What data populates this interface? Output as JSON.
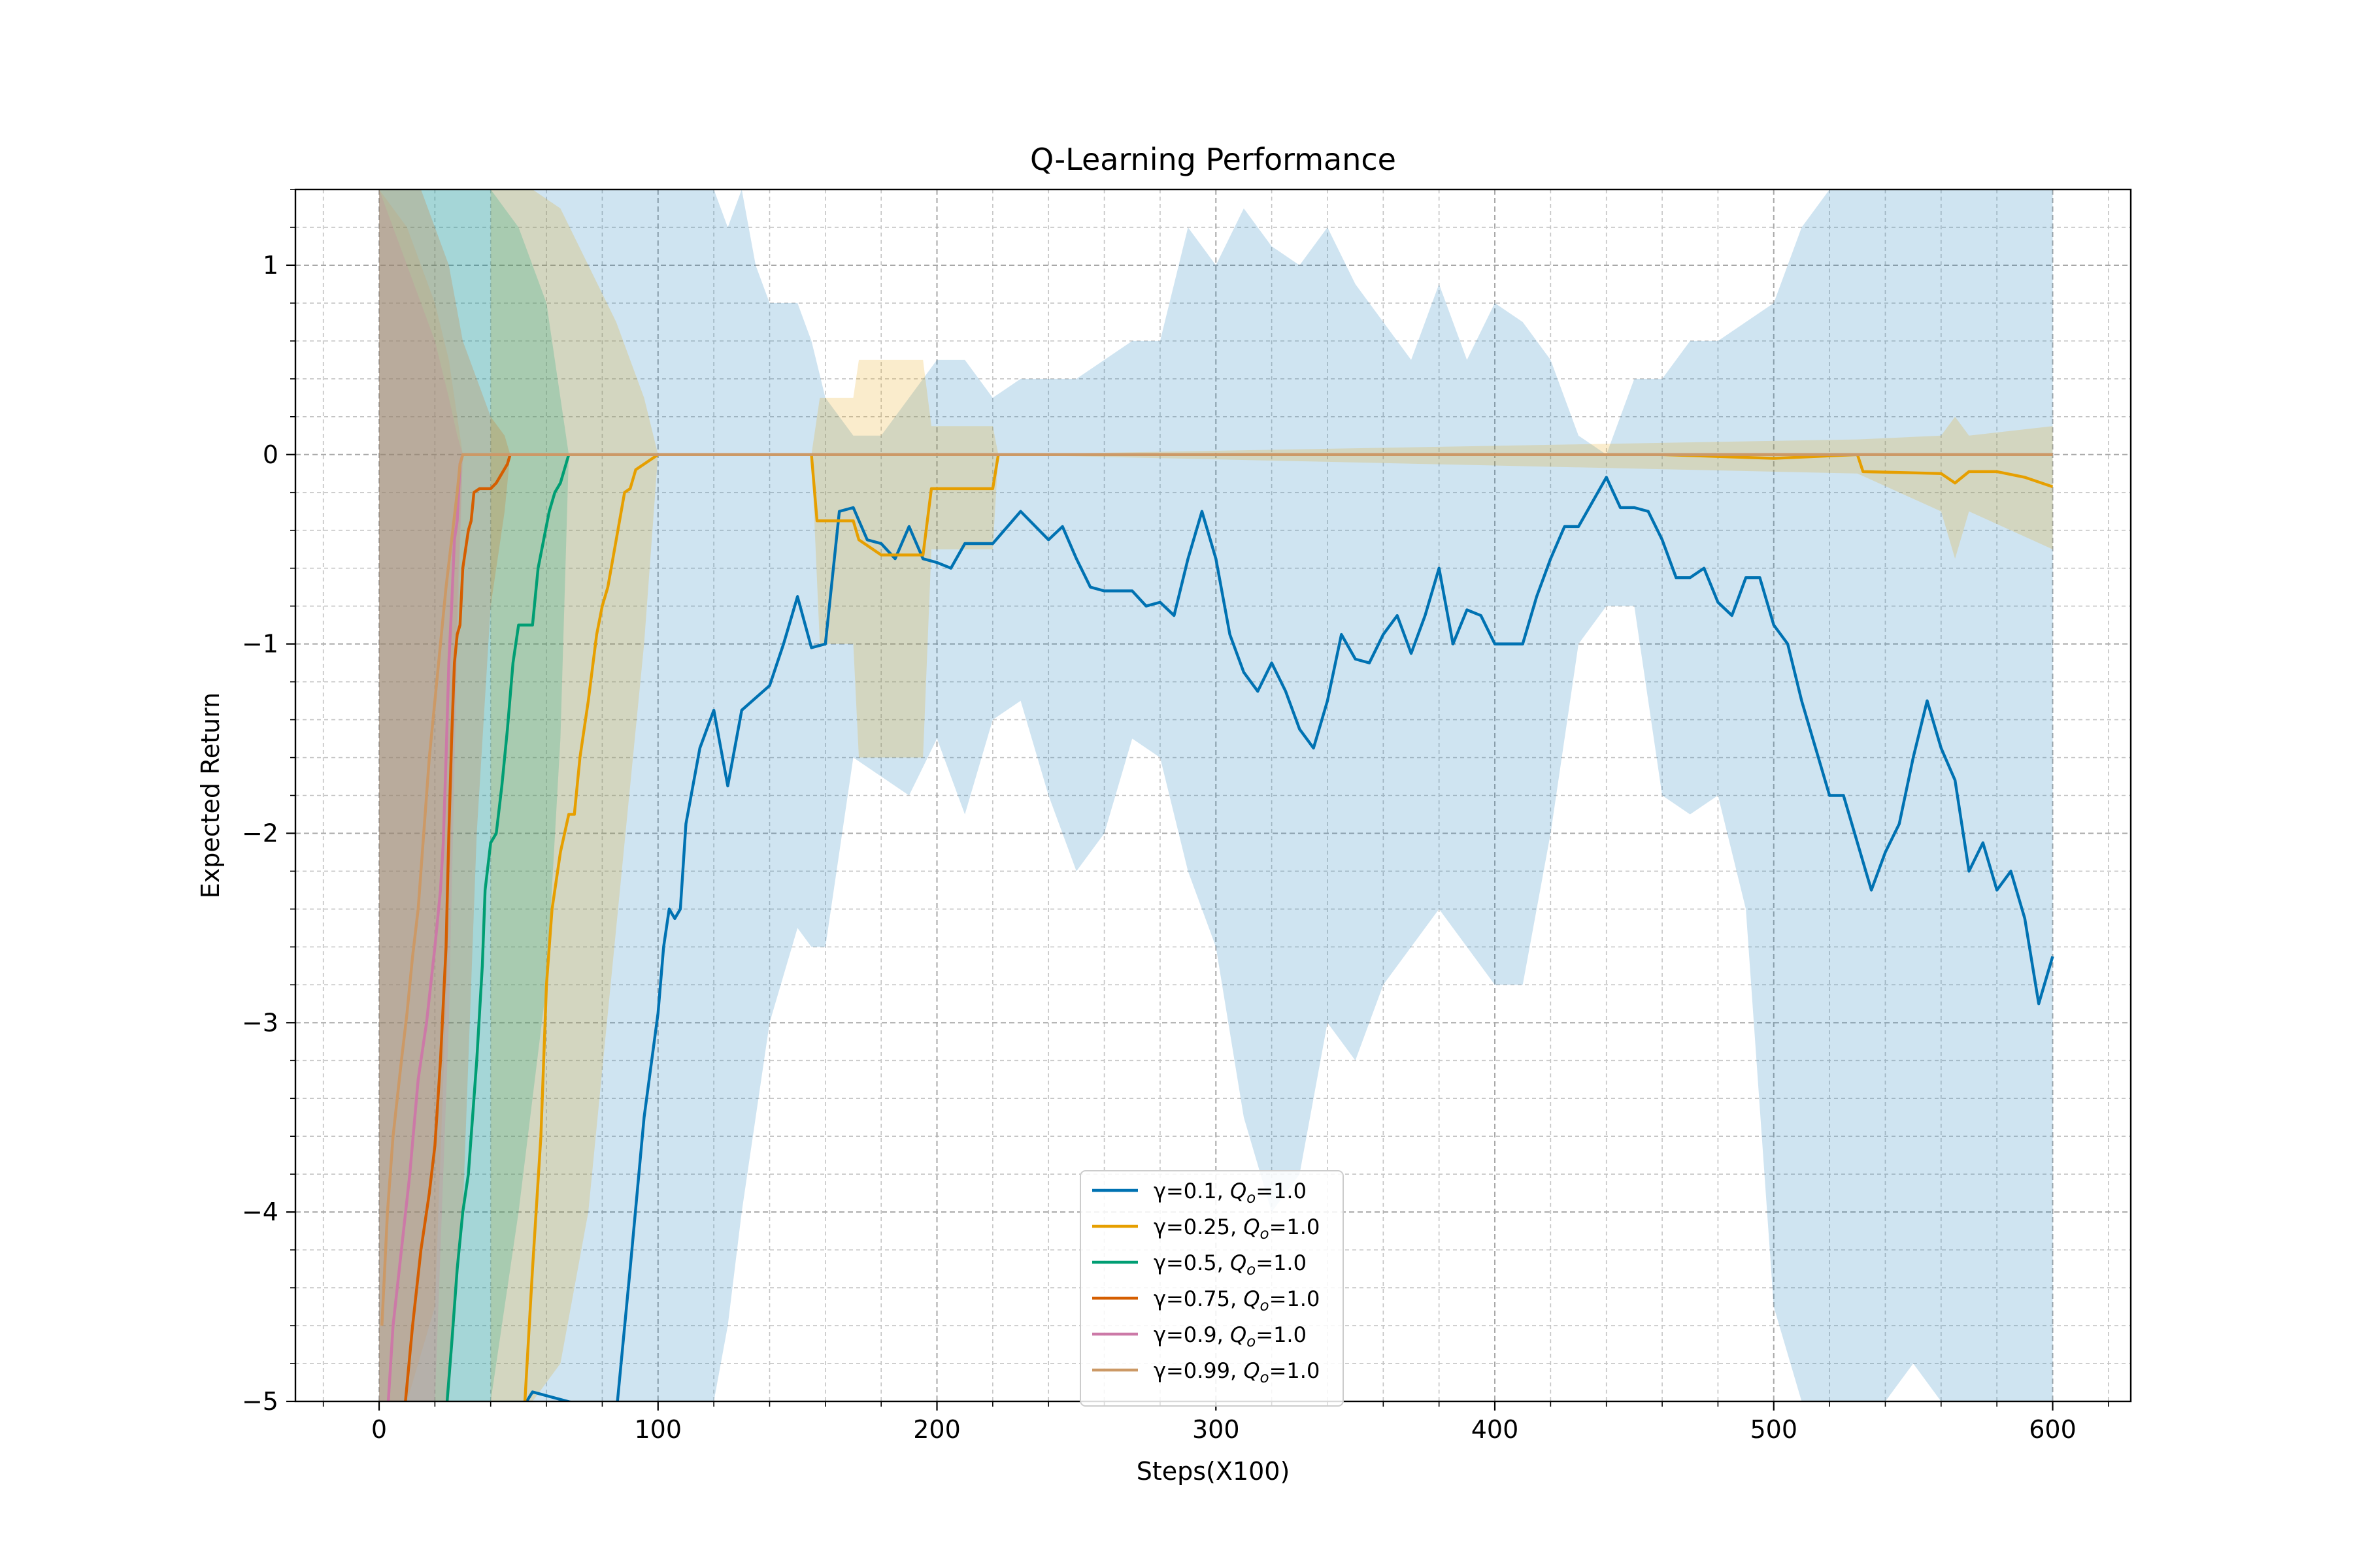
{
  "chart_data": {
    "type": "line",
    "title": "Q-Learning Performance",
    "xlabel": "Steps(X100)",
    "ylabel": "Expected Return",
    "xlim": [
      -30,
      628
    ],
    "ylim": [
      -5,
      1.4
    ],
    "x_ticks": [
      0,
      100,
      200,
      300,
      400,
      500,
      600
    ],
    "y_ticks": [
      1,
      0,
      -1,
      -2,
      -3,
      -4,
      -5
    ],
    "x_tick_labels": [
      "0",
      "100",
      "200",
      "300",
      "400",
      "500",
      "600"
    ],
    "y_tick_labels": [
      "1",
      "0",
      "−1",
      "−2",
      "−3",
      "−4",
      "−5"
    ],
    "grid": true,
    "legend_position": "lower-center",
    "series": [
      {
        "name": "γ=0.1, Q_o=1.0",
        "legend_prefix": "γ=0.1, ",
        "legend_suffix": "=1.0",
        "color": "#0072B2",
        "x": [
          0,
          50,
          55,
          85,
          90,
          95,
          100,
          102,
          104,
          106,
          108,
          110,
          115,
          120,
          125,
          130,
          140,
          145,
          150,
          155,
          160,
          165,
          170,
          175,
          180,
          185,
          190,
          195,
          200,
          205,
          210,
          220,
          230,
          240,
          245,
          250,
          255,
          260,
          270,
          275,
          280,
          285,
          290,
          295,
          300,
          305,
          310,
          315,
          320,
          325,
          330,
          335,
          340,
          345,
          350,
          355,
          360,
          365,
          370,
          375,
          380,
          385,
          390,
          395,
          400,
          405,
          410,
          415,
          420,
          425,
          430,
          435,
          440,
          445,
          450,
          455,
          460,
          465,
          470,
          475,
          480,
          485,
          490,
          495,
          500,
          505,
          510,
          515,
          520,
          525,
          530,
          535,
          540,
          545,
          550,
          555,
          560,
          565,
          570,
          575,
          580,
          585,
          590,
          595,
          600
        ],
        "y": [
          -5.2,
          -5.2,
          -4.95,
          -5.2,
          -4.3,
          -3.5,
          -2.95,
          -2.6,
          -2.4,
          -2.45,
          -2.4,
          -1.95,
          -1.55,
          -1.35,
          -1.75,
          -1.35,
          -1.22,
          -1.0,
          -0.75,
          -1.02,
          -1.0,
          -0.3,
          -0.28,
          -0.45,
          -0.47,
          -0.55,
          -0.38,
          -0.55,
          -0.57,
          -0.6,
          -0.47,
          -0.47,
          -0.3,
          -0.45,
          -0.38,
          -0.55,
          -0.7,
          -0.72,
          -0.72,
          -0.8,
          -0.78,
          -0.85,
          -0.55,
          -0.3,
          -0.55,
          -0.95,
          -1.15,
          -1.25,
          -1.1,
          -1.25,
          -1.45,
          -1.55,
          -1.3,
          -0.95,
          -1.08,
          -1.1,
          -0.95,
          -0.85,
          -1.05,
          -0.85,
          -0.6,
          -1.0,
          -0.82,
          -0.85,
          -1.0,
          -1.0,
          -1.0,
          -0.75,
          -0.55,
          -0.38,
          -0.38,
          -0.25,
          -0.12,
          -0.28,
          -0.28,
          -0.3,
          -0.45,
          -0.65,
          -0.65,
          -0.6,
          -0.78,
          -0.85,
          -0.65,
          -0.65,
          -0.9,
          -1.0,
          -1.3,
          -1.55,
          -1.8,
          -1.8,
          -2.05,
          -2.3,
          -2.1,
          -1.95,
          -1.6,
          -1.3,
          -1.55,
          -1.72,
          -2.2,
          -2.05,
          -2.3,
          -2.2,
          -2.45,
          -2.9,
          -2.65
        ]
      },
      {
        "name": "γ=0.25, Q_o=1.0",
        "legend_prefix": "γ=0.25, ",
        "legend_suffix": "=1.0",
        "color": "#E69F00",
        "x": [
          52,
          55,
          58,
          60,
          62,
          65,
          68,
          70,
          72,
          75,
          78,
          80,
          82,
          85,
          88,
          90,
          92,
          95,
          100,
          155,
          157,
          170,
          172,
          180,
          195,
          198,
          220,
          222,
          460,
          500,
          530,
          532,
          560,
          565,
          570,
          580,
          590,
          600
        ],
        "y": [
          -5.2,
          -4.3,
          -3.6,
          -2.8,
          -2.4,
          -2.1,
          -1.9,
          -1.9,
          -1.6,
          -1.3,
          -0.95,
          -0.8,
          -0.7,
          -0.45,
          -0.2,
          -0.18,
          -0.08,
          -0.05,
          0.0,
          0.0,
          -0.35,
          -0.35,
          -0.45,
          -0.53,
          -0.53,
          -0.18,
          -0.18,
          0.0,
          0.0,
          -0.02,
          0.0,
          -0.09,
          -0.1,
          -0.15,
          -0.09,
          -0.09,
          -0.12,
          -0.17
        ]
      },
      {
        "name": "γ=0.5, Q_o=1.0",
        "legend_prefix": "γ=0.5, ",
        "legend_suffix": "=1.0",
        "color": "#009E73",
        "x": [
          24,
          26,
          28,
          30,
          32,
          35,
          37,
          38,
          40,
          42,
          44,
          46,
          48,
          50,
          52,
          55,
          57,
          59,
          61,
          63,
          65,
          67,
          68,
          600
        ],
        "y": [
          -5.2,
          -4.7,
          -4.3,
          -4.0,
          -3.8,
          -3.2,
          -2.7,
          -2.3,
          -2.05,
          -2.0,
          -1.75,
          -1.45,
          -1.1,
          -0.9,
          -0.9,
          -0.9,
          -0.6,
          -0.45,
          -0.3,
          -0.2,
          -0.15,
          -0.05,
          0.0,
          0.0
        ]
      },
      {
        "name": "γ=0.75, Q_o=1.0",
        "legend_prefix": "γ=0.75, ",
        "legend_suffix": "=1.0",
        "color": "#D55E00",
        "x": [
          9,
          12,
          15,
          18,
          20,
          22,
          24,
          25,
          26,
          27,
          28,
          29,
          30,
          31,
          32,
          33,
          34,
          36,
          38,
          40,
          42,
          44,
          46,
          47,
          600
        ],
        "y": [
          -5.2,
          -4.6,
          -4.2,
          -3.9,
          -3.65,
          -3.2,
          -2.6,
          -2.0,
          -1.5,
          -1.1,
          -0.95,
          -0.9,
          -0.6,
          -0.5,
          -0.4,
          -0.35,
          -0.2,
          -0.18,
          -0.18,
          -0.18,
          -0.15,
          -0.1,
          -0.05,
          0.0,
          0.0
        ]
      },
      {
        "name": "γ=0.9, Q_o=1.0",
        "legend_prefix": "γ=0.9, ",
        "legend_suffix": "=1.0",
        "color": "#CC79A7",
        "x": [
          3,
          5,
          8,
          11,
          14,
          17,
          20,
          22,
          23,
          24,
          25,
          26,
          27,
          28,
          29,
          30,
          600
        ],
        "y": [
          -5.2,
          -4.6,
          -4.2,
          -3.8,
          -3.3,
          -3.0,
          -2.6,
          -2.3,
          -2.05,
          -1.6,
          -1.1,
          -0.8,
          -0.45,
          -0.35,
          -0.05,
          0.0,
          0.0
        ]
      },
      {
        "name": "γ=0.99, Q_o=1.0",
        "legend_prefix": "γ=0.99, ",
        "legend_suffix": "=1.0",
        "color": "#CC9966",
        "x": [
          1,
          3,
          5,
          8,
          10,
          12,
          14,
          16,
          18,
          20,
          22,
          24,
          26,
          28,
          29,
          30,
          600
        ],
        "y": [
          -4.6,
          -4.0,
          -3.6,
          -3.2,
          -2.95,
          -2.65,
          -2.4,
          -2.0,
          -1.6,
          -1.3,
          -1.0,
          -0.7,
          -0.45,
          -0.2,
          -0.05,
          0.0,
          0.0
        ]
      }
    ],
    "bands": [
      {
        "series": "γ=0.1, Q_o=1.0",
        "color": "#0072B2",
        "opacity": 0.19,
        "x": [
          0,
          40,
          60,
          70,
          80,
          90,
          100,
          110,
          120,
          125,
          130,
          135,
          140,
          150,
          155,
          160,
          170,
          180,
          190,
          200,
          210,
          220,
          230,
          240,
          250,
          260,
          270,
          280,
          290,
          300,
          310,
          320,
          330,
          340,
          350,
          360,
          370,
          380,
          390,
          400,
          410,
          420,
          430,
          440,
          450,
          460,
          470,
          480,
          490,
          500,
          510,
          520,
          530,
          540,
          550,
          560,
          570,
          580,
          590,
          600
        ],
        "upper": [
          1.4,
          1.4,
          1.4,
          1.4,
          1.4,
          1.4,
          1.4,
          1.4,
          1.4,
          1.2,
          1.4,
          1.0,
          0.8,
          0.8,
          0.6,
          0.3,
          0.1,
          0.1,
          0.3,
          0.5,
          0.5,
          0.3,
          0.4,
          0.4,
          0.4,
          0.5,
          0.6,
          0.6,
          1.2,
          1.0,
          1.3,
          1.1,
          1.0,
          1.2,
          0.9,
          0.7,
          0.5,
          0.9,
          0.5,
          0.8,
          0.7,
          0.5,
          0.1,
          0.0,
          0.4,
          0.4,
          0.6,
          0.6,
          0.7,
          0.8,
          1.2,
          1.4,
          1.4,
          1.4,
          1.4,
          1.4,
          1.4,
          1.4,
          1.4,
          1.4
        ],
        "lower": [
          -5.0,
          -5.0,
          -5.0,
          -5.0,
          -5.0,
          -5.0,
          -5.0,
          -5.0,
          -5.0,
          -4.6,
          -4.0,
          -3.5,
          -3.0,
          -2.5,
          -2.6,
          -2.6,
          -1.6,
          -1.7,
          -1.8,
          -1.5,
          -1.9,
          -1.4,
          -1.3,
          -1.8,
          -2.2,
          -2.0,
          -1.5,
          -1.6,
          -2.2,
          -2.6,
          -3.5,
          -4.0,
          -3.8,
          -3.0,
          -3.2,
          -2.8,
          -2.6,
          -2.4,
          -2.6,
          -2.8,
          -2.8,
          -2.0,
          -1.0,
          -0.8,
          -0.8,
          -1.8,
          -1.9,
          -1.8,
          -2.4,
          -4.5,
          -5.0,
          -5.0,
          -5.0,
          -5.0,
          -4.8,
          -5.0,
          -5.0,
          -5.0,
          -5.0,
          -5.0
        ]
      },
      {
        "series": "γ=0.25, Q_o=1.0",
        "color": "#E69F00",
        "opacity": 0.2,
        "x": [
          40,
          55,
          65,
          75,
          85,
          95,
          100,
          155,
          158,
          170,
          172,
          180,
          195,
          198,
          220,
          222,
          530,
          560,
          565,
          570,
          600
        ],
        "upper": [
          1.4,
          1.4,
          1.3,
          1.0,
          0.7,
          0.3,
          0.0,
          0.0,
          0.3,
          0.3,
          0.5,
          0.5,
          0.5,
          0.15,
          0.15,
          0.0,
          0.08,
          0.1,
          0.2,
          0.1,
          0.15
        ],
        "lower": [
          -5.0,
          -5.0,
          -4.8,
          -4.0,
          -2.5,
          -1.0,
          0.0,
          0.0,
          -1.0,
          -1.0,
          -1.6,
          -1.6,
          -1.6,
          -0.5,
          -0.5,
          0.0,
          -0.1,
          -0.3,
          -0.55,
          -0.3,
          -0.5
        ]
      },
      {
        "series": "γ=0.5, Q_o=1.0",
        "color": "#009E73",
        "opacity": 0.2,
        "x": [
          0,
          20,
          30,
          40,
          50,
          60,
          65,
          68
        ],
        "upper": [
          1.4,
          1.4,
          1.4,
          1.4,
          1.2,
          0.8,
          0.3,
          0.0
        ],
        "lower": [
          -5.0,
          -5.0,
          -5.0,
          -5.0,
          -4.0,
          -2.8,
          -1.5,
          0.0
        ]
      },
      {
        "series": "γ=0.75, Q_o=1.0",
        "color": "#D55E00",
        "opacity": 0.2,
        "x": [
          0,
          15,
          25,
          30,
          35,
          40,
          45,
          47
        ],
        "upper": [
          1.4,
          1.4,
          1.0,
          0.6,
          0.4,
          0.2,
          0.1,
          0.0
        ],
        "lower": [
          -5.0,
          -5.0,
          -5.0,
          -4.0,
          -2.0,
          -0.8,
          -0.3,
          0.0
        ]
      },
      {
        "series": "γ=0.9, Q_o=1.0",
        "color": "#CC79A7",
        "opacity": 0.2,
        "x": [
          0,
          10,
          20,
          25,
          28,
          30
        ],
        "upper": [
          1.4,
          1.0,
          0.6,
          0.3,
          0.1,
          0.0
        ],
        "lower": [
          -5.0,
          -5.0,
          -5.0,
          -3.0,
          -1.0,
          0.0
        ]
      },
      {
        "series": "γ=0.99, Q_o=1.0",
        "color": "#CC9966",
        "opacity": 0.2,
        "x": [
          0,
          10,
          20,
          25,
          28,
          30
        ],
        "upper": [
          1.4,
          1.2,
          0.8,
          0.5,
          0.2,
          0.0
        ],
        "lower": [
          -5.0,
          -5.0,
          -4.5,
          -2.5,
          -0.8,
          0.0
        ]
      }
    ],
    "legend_subscript_base": "Q",
    "legend_subscript": "o"
  }
}
